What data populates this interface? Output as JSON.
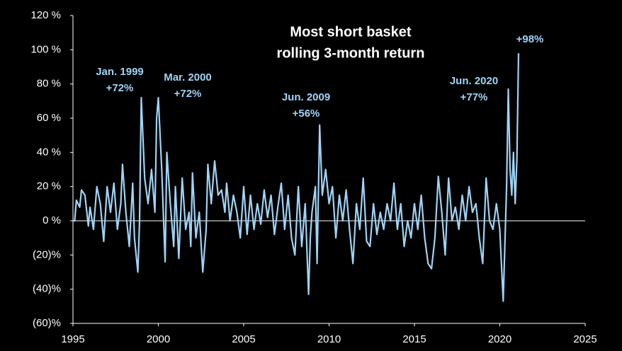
{
  "chart_data": {
    "type": "line",
    "title": [
      "Most short basket",
      "rolling 3-month return"
    ],
    "annotations": [
      {
        "date": "Jan. 1999",
        "label": "+72%"
      },
      {
        "date": "Mar. 2000",
        "label": "+72%"
      },
      {
        "date": "Jun. 2009",
        "label": "+56%"
      },
      {
        "date": "Jun. 2020",
        "label": "+77%"
      },
      {
        "label": "+98%"
      }
    ],
    "color": "#9fd3f5",
    "x": [
      1995.0,
      1995.1,
      1995.2,
      1995.4,
      1995.5,
      1995.7,
      1995.9,
      1996.0,
      1996.2,
      1996.4,
      1996.6,
      1996.8,
      1997.0,
      1997.2,
      1997.4,
      1997.6,
      1997.8,
      1997.9,
      1998.1,
      1998.3,
      1998.5,
      1998.6,
      1998.8,
      1998.9,
      1999.0,
      1999.2,
      1999.4,
      1999.6,
      1999.8,
      1999.9,
      2000.0,
      2000.2,
      2000.4,
      2000.5,
      2000.7,
      2000.9,
      2001.0,
      2001.2,
      2001.4,
      2001.6,
      2001.8,
      2001.9,
      2002.0,
      2002.2,
      2002.4,
      2002.6,
      2002.8,
      2002.9,
      2003.1,
      2003.3,
      2003.5,
      2003.7,
      2003.9,
      2004.0,
      2004.2,
      2004.4,
      2004.6,
      2004.8,
      2005.0,
      2005.2,
      2005.4,
      2005.6,
      2005.8,
      2006.0,
      2006.2,
      2006.4,
      2006.6,
      2006.8,
      2007.0,
      2007.2,
      2007.4,
      2007.6,
      2007.8,
      2008.0,
      2008.2,
      2008.4,
      2008.6,
      2008.8,
      2008.9,
      2009.0,
      2009.2,
      2009.3,
      2009.45,
      2009.6,
      2009.8,
      2010.0,
      2010.2,
      2010.4,
      2010.6,
      2010.8,
      2011.0,
      2011.2,
      2011.4,
      2011.6,
      2011.8,
      2012.0,
      2012.2,
      2012.4,
      2012.6,
      2012.8,
      2013.0,
      2013.2,
      2013.4,
      2013.6,
      2013.8,
      2014.0,
      2014.2,
      2014.4,
      2014.6,
      2014.8,
      2015.0,
      2015.2,
      2015.4,
      2015.6,
      2015.8,
      2016.0,
      2016.2,
      2016.4,
      2016.6,
      2016.8,
      2017.0,
      2017.2,
      2017.4,
      2017.6,
      2017.8,
      2018.0,
      2018.2,
      2018.4,
      2018.6,
      2018.8,
      2019.0,
      2019.2,
      2019.4,
      2019.6,
      2019.8,
      2020.0,
      2020.2,
      2020.4,
      2020.5,
      2020.6,
      2020.7,
      2020.8,
      2020.9,
      2021.0,
      2021.1
    ],
    "values": [
      0,
      0,
      12,
      8,
      18,
      15,
      -3,
      8,
      -5,
      20,
      10,
      -12,
      20,
      5,
      22,
      -5,
      10,
      33,
      5,
      -15,
      22,
      -10,
      -30,
      0,
      72,
      25,
      10,
      30,
      5,
      60,
      72,
      30,
      -24,
      40,
      10,
      -15,
      20,
      -22,
      25,
      -5,
      5,
      -15,
      28,
      -10,
      5,
      -30,
      -5,
      33,
      10,
      35,
      15,
      18,
      5,
      22,
      0,
      15,
      5,
      -10,
      20,
      -8,
      15,
      -5,
      10,
      -2,
      18,
      2,
      15,
      -8,
      8,
      22,
      -5,
      15,
      -10,
      -20,
      20,
      -15,
      10,
      -43,
      -10,
      5,
      20,
      -25,
      56,
      15,
      30,
      10,
      20,
      -10,
      15,
      0,
      18,
      -5,
      -25,
      10,
      -5,
      25,
      -12,
      -15,
      10,
      -8,
      5,
      -5,
      10,
      0,
      22,
      -5,
      10,
      -15,
      0,
      -10,
      10,
      -5,
      15,
      -10,
      -25,
      -28,
      -10,
      26,
      5,
      -20,
      25,
      0,
      8,
      -5,
      15,
      0,
      20,
      5,
      10,
      -10,
      -25,
      25,
      0,
      -5,
      10,
      -5,
      -47,
      20,
      77,
      30,
      15,
      40,
      10,
      35,
      98
    ],
    "xlim": [
      1995,
      2025
    ],
    "xticks": [
      1995,
      2000,
      2005,
      2010,
      2015,
      2020,
      2025
    ],
    "ylim": [
      -60,
      120
    ],
    "yticks": [
      {
        "value": -60,
        "label": "(60)%"
      },
      {
        "value": -40,
        "label": "(40)%"
      },
      {
        "value": -20,
        "label": "(20)%"
      },
      {
        "value": 0,
        "label": "0 %"
      },
      {
        "value": 20,
        "label": "20 %"
      },
      {
        "value": 40,
        "label": "40 %"
      },
      {
        "value": 60,
        "label": "60 %"
      },
      {
        "value": 80,
        "label": "80 %"
      },
      {
        "value": 100,
        "label": "100 %"
      },
      {
        "value": 120,
        "label": "120 %"
      }
    ]
  }
}
